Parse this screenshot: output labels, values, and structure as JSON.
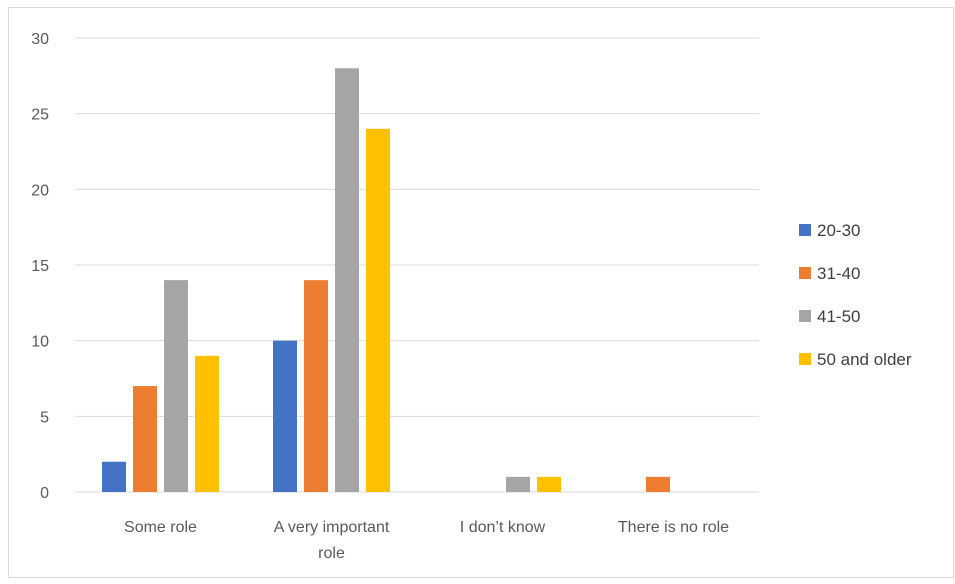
{
  "chart_data": {
    "type": "bar",
    "categories": [
      [
        "Some role"
      ],
      [
        "A very important",
        "role"
      ],
      [
        "I don’t know"
      ],
      [
        "There is no role"
      ]
    ],
    "series": [
      {
        "name": "20-30",
        "color": "#4472c4",
        "values": [
          2,
          10,
          0,
          0
        ]
      },
      {
        "name": "31-40",
        "color": "#ed7d31",
        "values": [
          7,
          14,
          0,
          1
        ]
      },
      {
        "name": "41-50",
        "color": "#a5a5a5",
        "values": [
          14,
          28,
          1,
          0
        ]
      },
      {
        "name": "50 and older",
        "color": "#ffc000",
        "values": [
          9,
          24,
          1,
          0
        ]
      }
    ],
    "yticks": [
      0,
      5,
      10,
      15,
      20,
      25,
      30
    ],
    "ylim": [
      0,
      30
    ],
    "grid": true,
    "legend_position": "right",
    "gridline_color": "#d9d9d9"
  }
}
